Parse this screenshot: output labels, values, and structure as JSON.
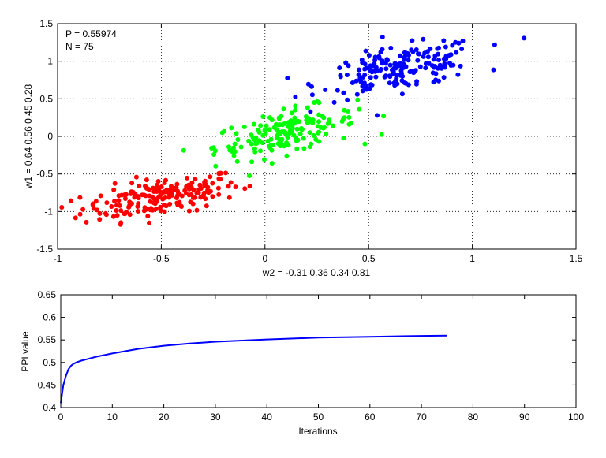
{
  "chart_data": [
    {
      "type": "scatter",
      "xlabel": "w2 = -0.31  0.36  0.34  0.81",
      "ylabel": "w1 = 0.64  0.56  0.45  0.28",
      "xlim": [
        -1,
        1.5
      ],
      "ylim": [
        -1.5,
        1.5
      ],
      "xticks": [
        -1,
        -0.5,
        0,
        0.5,
        1,
        1.5
      ],
      "xtick_labels": [
        "-1",
        "-0.5",
        "0",
        "0.5",
        "1",
        "1.5"
      ],
      "yticks": [
        -1.5,
        -1,
        -0.5,
        0,
        0.5,
        1,
        1.5
      ],
      "ytick_labels": [
        "-1.5",
        "-1",
        "-0.5",
        "0",
        "0.5",
        "1",
        "1.5"
      ],
      "grid": true,
      "annotations": [
        "P = 0.55974",
        "N = 75"
      ],
      "series": [
        {
          "color": "#ff0000",
          "center": [
            -0.5,
            -0.8
          ],
          "spread": [
            0.19,
            0.15
          ],
          "count": 190
        },
        {
          "color": "#00ff00",
          "center": [
            0.1,
            0.05
          ],
          "spread": [
            0.17,
            0.17
          ],
          "count": 170
        },
        {
          "color": "#0000ff",
          "center": [
            0.65,
            0.9
          ],
          "spread": [
            0.19,
            0.17
          ],
          "count": 190
        }
      ]
    },
    {
      "type": "line",
      "xlabel": "Iterations",
      "ylabel": "PPI value",
      "xlim": [
        0,
        100
      ],
      "ylim": [
        0.4,
        0.65
      ],
      "xticks": [
        0,
        10,
        20,
        30,
        40,
        50,
        60,
        70,
        80,
        90,
        100
      ],
      "xtick_labels": [
        "0",
        "10",
        "20",
        "30",
        "40",
        "50",
        "60",
        "70",
        "80",
        "90",
        "100"
      ],
      "yticks": [
        0.4,
        0.45,
        0.5,
        0.55,
        0.6,
        0.65
      ],
      "ytick_labels": [
        "0.4",
        "0.45",
        "0.5",
        "0.55",
        "0.6",
        "0.65"
      ],
      "grid": false,
      "series": [
        {
          "color": "#0000ff",
          "x": [
            0,
            0.5,
            1,
            1.5,
            2,
            2.5,
            3,
            4,
            5,
            7,
            10,
            15,
            20,
            25,
            30,
            40,
            50,
            60,
            70,
            75
          ],
          "values": [
            0.41,
            0.45,
            0.47,
            0.485,
            0.493,
            0.497,
            0.5,
            0.504,
            0.507,
            0.513,
            0.52,
            0.53,
            0.537,
            0.542,
            0.546,
            0.551,
            0.555,
            0.557,
            0.559,
            0.5597
          ]
        }
      ]
    }
  ]
}
